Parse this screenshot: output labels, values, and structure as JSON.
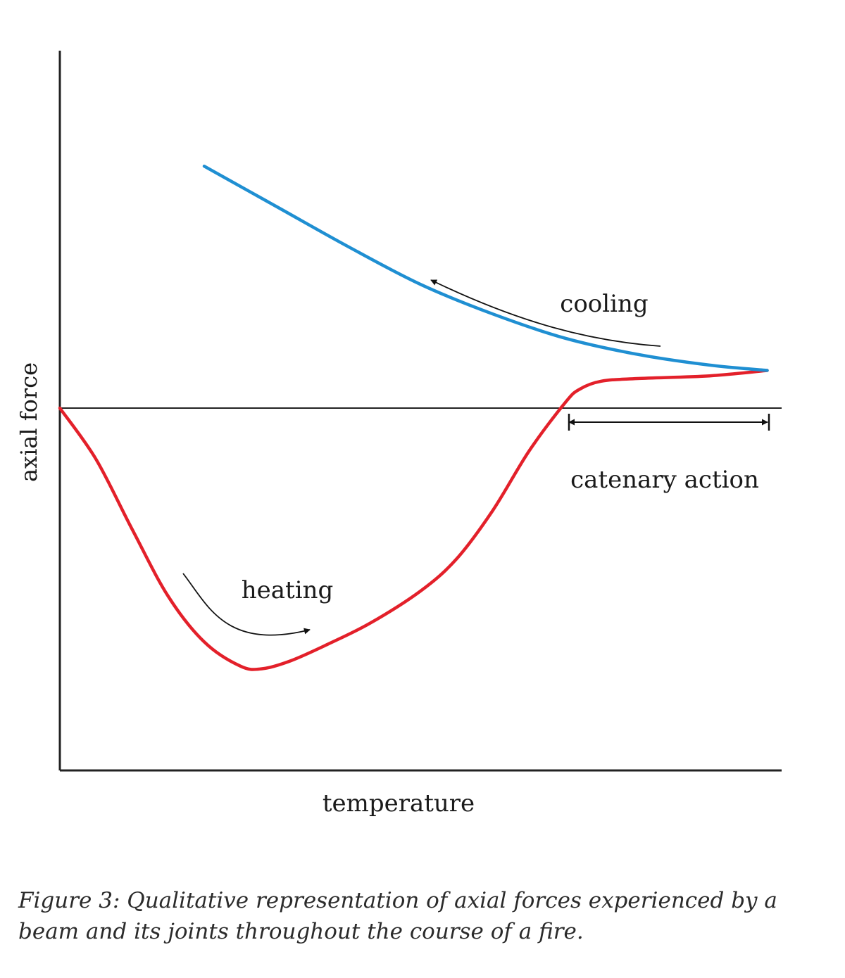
{
  "chart_data": {
    "type": "line",
    "xlabel": "temperature",
    "ylabel": "axial force",
    "x_ticks": [],
    "y_ticks": [],
    "grid": false,
    "zero_line": true,
    "series": [
      {
        "name": "heating",
        "color": "#e3202a",
        "x": [
          0,
          0.05,
          0.1,
          0.15,
          0.2,
          0.25,
          0.28,
          0.32,
          0.37,
          0.43,
          0.5,
          0.55,
          0.6,
          0.65,
          0.7,
          0.72,
          0.75,
          0.8,
          0.9,
          0.98
        ],
        "y": [
          0,
          -0.19,
          -0.45,
          -0.7,
          -0.87,
          -0.96,
          -0.97,
          -0.94,
          -0.88,
          -0.8,
          -0.68,
          -0.56,
          -0.38,
          -0.16,
          0.02,
          0.07,
          0.1,
          0.11,
          0.12,
          0.14
        ]
      },
      {
        "name": "cooling",
        "color": "#1f8fd2",
        "x": [
          0.2,
          0.3,
          0.4,
          0.5,
          0.6,
          0.7,
          0.8,
          0.9,
          0.98
        ],
        "y": [
          0.9,
          0.75,
          0.6,
          0.46,
          0.35,
          0.26,
          0.2,
          0.16,
          0.14
        ]
      }
    ],
    "annotations": [
      {
        "text": "cooling"
      },
      {
        "text": "heating"
      },
      {
        "text": "catenary action"
      }
    ]
  },
  "caption": "Figure 3: Qualitative representation of axial forces experienced by a beam and its joints throughout the course of a fire."
}
